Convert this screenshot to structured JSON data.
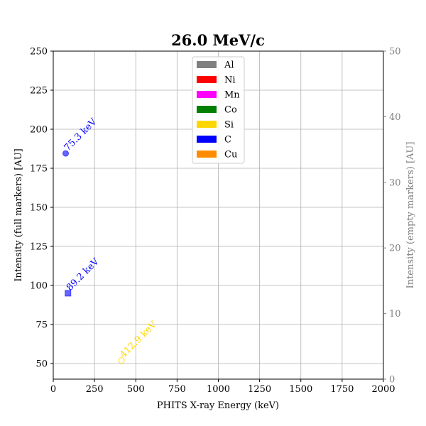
{
  "chart_data": {
    "type": "scatter",
    "title": "26.0 MeV/c",
    "xlabel": "PHITS X-ray Energy (keV)",
    "ylabel_left": "Intensity (full markers) [AU]",
    "ylabel_right": "Intensity (empty markers) [AU]",
    "xlim": [
      0,
      2000
    ],
    "ylim_left": [
      40,
      250
    ],
    "ylim_right": [
      0,
      50
    ],
    "x_ticks": [
      0,
      250,
      500,
      750,
      1000,
      1250,
      1500,
      1750,
      2000
    ],
    "y_ticks_left": [
      50,
      75,
      100,
      125,
      150,
      175,
      200,
      225,
      250
    ],
    "y_ticks_right": [
      0,
      10,
      20,
      30,
      40,
      50
    ],
    "grid": true,
    "legend_position": "top-center",
    "legend": [
      {
        "label": "Al",
        "color": "#808080"
      },
      {
        "label": "Ni",
        "color": "#ff0000"
      },
      {
        "label": "Mn",
        "color": "#ff00ff"
      },
      {
        "label": "Co",
        "color": "#008000"
      },
      {
        "label": "Si",
        "color": "#ffd700"
      },
      {
        "label": "C",
        "color": "#0000ff"
      },
      {
        "label": "Cu",
        "color": "#ff8c00"
      }
    ],
    "points": [
      {
        "x": 75.3,
        "y": 184.5,
        "axis": "left",
        "marker": "circle",
        "filled": true,
        "color": "#0000ff",
        "label": "75.3 keV"
      },
      {
        "x": 89.2,
        "y": 95,
        "axis": "left",
        "marker": "square",
        "filled": true,
        "color": "#0000ff",
        "label": "89.2 keV"
      },
      {
        "x": 412.9,
        "y": 52,
        "axis": "left",
        "marker": "circle",
        "filled": false,
        "color": "#ffd700",
        "label": "412.9 keV"
      }
    ]
  }
}
